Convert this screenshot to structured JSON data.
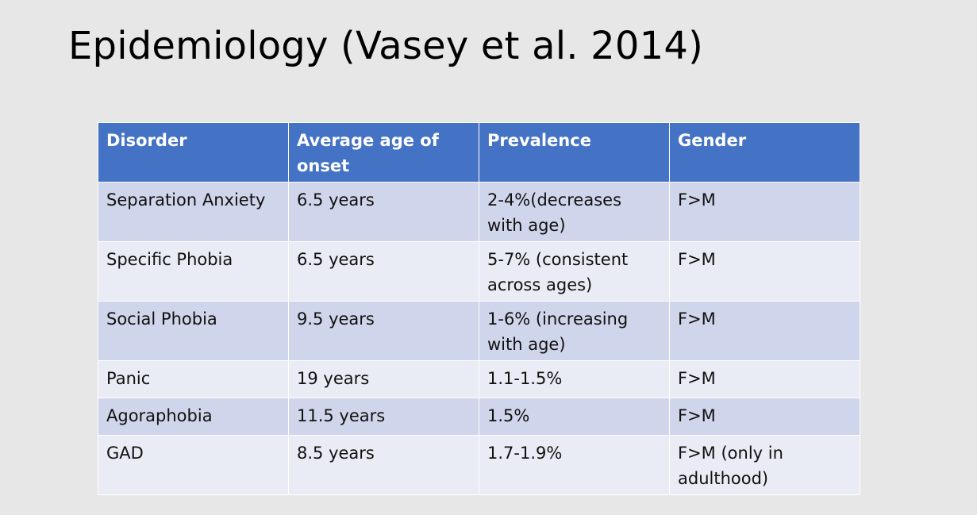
{
  "slide": {
    "title": "Epidemiology (Vasey et al. 2014)"
  },
  "table": {
    "headers": [
      "Disorder",
      "Average age of onset",
      "Prevalence",
      "Gender"
    ],
    "rows": [
      [
        "Separation Anxiety",
        "6.5 years",
        "2-4%(decreases with age)",
        "F>M"
      ],
      [
        "Specific Phobia",
        "6.5 years",
        "5-7% (consistent across ages)",
        "F>M"
      ],
      [
        "Social Phobia",
        "9.5 years",
        "1-6% (increasing with age)",
        "F>M"
      ],
      [
        "Panic",
        "19 years",
        "1.1-1.5%",
        "F>M"
      ],
      [
        "Agoraphobia",
        "11.5 years",
        "1.5%",
        "F>M"
      ],
      [
        "GAD",
        "8.5 years",
        "1.7-1.9%",
        "F>M (only in adulthood)"
      ]
    ]
  },
  "colors": {
    "header_bg": "#4472c4",
    "row_odd_bg": "#cfd5ea",
    "row_even_bg": "#e9ebf5",
    "slide_bg": "#e7e7e7"
  }
}
